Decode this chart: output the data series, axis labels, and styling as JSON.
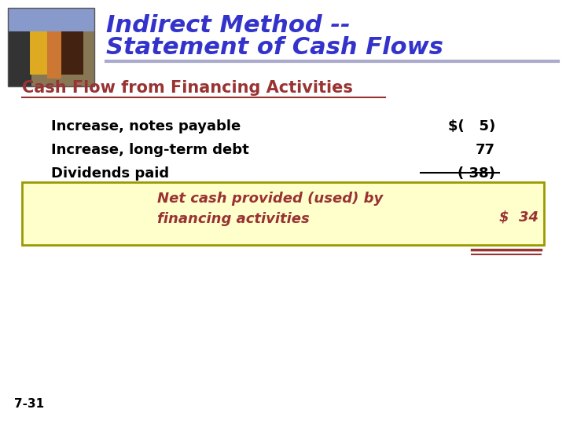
{
  "title_line1": "Indirect Method --",
  "title_line2": "Statement of Cash Flows",
  "title_color": "#3333cc",
  "section_header": "Cash Flow from Financing Activities",
  "section_header_color": "#993333",
  "line_items": [
    {
      "label": "Increase, notes payable",
      "value": "$(   5)"
    },
    {
      "label": "Increase, long-term debt",
      "value": "77"
    },
    {
      "label": "Dividends paid",
      "value": "( 38)"
    }
  ],
  "line_item_color": "#000000",
  "line_item_value_color": "#000000",
  "dividends_underline_color": "#000000",
  "box_label_line1": "Net cash provided (used) by",
  "box_label_line2": "financing activities",
  "box_value": "$  34",
  "box_text_color": "#993333",
  "box_bg_color": "#ffffcc",
  "box_border_color": "#999900",
  "box_underline_color": "#993333",
  "footer": "7-31",
  "footer_color": "#000000",
  "bg_color": "#ffffff",
  "header_underline_color": "#aaaacc"
}
